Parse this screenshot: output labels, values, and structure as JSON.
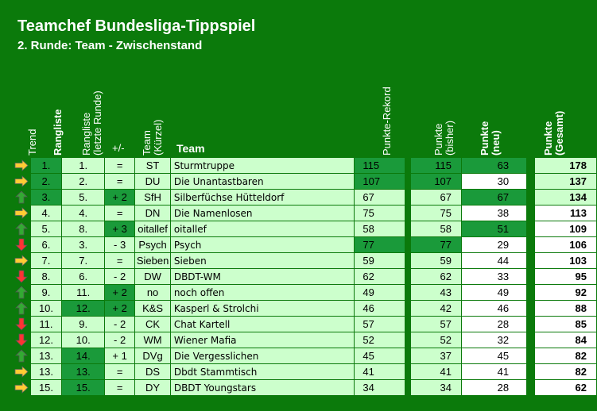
{
  "title": "Teamchef Bundesliga-Tippspiel",
  "subtitle": "2. Runde: Team - Zwischenstand",
  "headers": {
    "trend": "Trend",
    "rangliste": "Rangliste",
    "rangliste_last_1": "Rangliste",
    "rangliste_last_2": "(letzte Runde)",
    "plusminus": "+/-",
    "kuerzel_1": "Team",
    "kuerzel_2": "(Kürzel)",
    "team": "Team",
    "rekord": "Punkte-Rekord",
    "bisher_1": "Punkte",
    "bisher_2": "(bisher)",
    "neu_1": "Punkte",
    "neu_2": "(neu)",
    "gesamt_1": "Punkte",
    "gesamt_2": "(Gesamt)"
  },
  "colors": {
    "background": "#0b7a0b",
    "cell": "#ccffcc",
    "highlight": "#1a9a3a",
    "arrow_up": "#33aa33",
    "arrow_down": "#ff3333",
    "arrow_same": "#ffcc33"
  },
  "rows": [
    {
      "trend": "same",
      "rank": "1.",
      "last": "1.",
      "pm": "=",
      "abbr": "ST",
      "team": "Sturmtruppe",
      "rek": "115",
      "bis": "115",
      "neu": "63",
      "ges": "178",
      "hl": [
        "rank",
        "rek",
        "bis",
        "neu"
      ]
    },
    {
      "trend": "same",
      "rank": "2.",
      "last": "2.",
      "pm": "=",
      "abbr": "DU",
      "team": "Die Unantastbaren",
      "rek": "107",
      "bis": "107",
      "neu": "30",
      "ges": "137",
      "hl": [
        "rank",
        "rek",
        "bis"
      ]
    },
    {
      "trend": "up",
      "rank": "3.",
      "last": "5.",
      "pm": "+ 2",
      "abbr": "SfH",
      "team": "Silberfüchse Hütteldorf",
      "rek": "67",
      "bis": "67",
      "neu": "67",
      "ges": "134",
      "hl": [
        "rank",
        "pm",
        "neu"
      ]
    },
    {
      "trend": "same",
      "rank": "4.",
      "last": "4.",
      "pm": "=",
      "abbr": "DN",
      "team": "Die Namenlosen",
      "rek": "75",
      "bis": "75",
      "neu": "38",
      "ges": "113",
      "hl": []
    },
    {
      "trend": "up",
      "rank": "5.",
      "last": "8.",
      "pm": "+ 3",
      "abbr": "oitallef",
      "team": "oitallef",
      "rek": "58",
      "bis": "58",
      "neu": "51",
      "ges": "109",
      "hl": [
        "pm",
        "neu"
      ]
    },
    {
      "trend": "down",
      "rank": "6.",
      "last": "3.",
      "pm": "- 3",
      "abbr": "Psych",
      "team": "Psych",
      "rek": "77",
      "bis": "77",
      "neu": "29",
      "ges": "106",
      "hl": [
        "rek",
        "bis"
      ]
    },
    {
      "trend": "same",
      "rank": "7.",
      "last": "7.",
      "pm": "=",
      "abbr": "Sieben",
      "team": "Sieben",
      "rek": "59",
      "bis": "59",
      "neu": "44",
      "ges": "103",
      "hl": []
    },
    {
      "trend": "down",
      "rank": "8.",
      "last": "6.",
      "pm": "- 2",
      "abbr": "DW",
      "team": "DBDT-WM",
      "rek": "62",
      "bis": "62",
      "neu": "33",
      "ges": "95",
      "hl": []
    },
    {
      "trend": "up",
      "rank": "9.",
      "last": "11.",
      "pm": "+ 2",
      "abbr": "no",
      "team": "noch offen",
      "rek": "49",
      "bis": "43",
      "neu": "49",
      "ges": "92",
      "hl": [
        "pm"
      ]
    },
    {
      "trend": "up",
      "rank": "10.",
      "last": "12.",
      "pm": "+ 2",
      "abbr": "K&S",
      "team": "Kasperl & Strolchi",
      "rek": "46",
      "bis": "42",
      "neu": "46",
      "ges": "88",
      "hl": [
        "last",
        "pm"
      ]
    },
    {
      "trend": "down",
      "rank": "11.",
      "last": "9.",
      "pm": "- 2",
      "abbr": "CK",
      "team": "Chat Kartell",
      "rek": "57",
      "bis": "57",
      "neu": "28",
      "ges": "85",
      "hl": []
    },
    {
      "trend": "down",
      "rank": "12.",
      "last": "10.",
      "pm": "- 2",
      "abbr": "WM",
      "team": "Wiener Mafia",
      "rek": "52",
      "bis": "52",
      "neu": "32",
      "ges": "84",
      "hl": []
    },
    {
      "trend": "up",
      "rank": "13.",
      "last": "14.",
      "pm": "+ 1",
      "abbr": "DVg",
      "team": "Die Vergesslichen",
      "rek": "45",
      "bis": "37",
      "neu": "45",
      "ges": "82",
      "hl": [
        "last"
      ]
    },
    {
      "trend": "same",
      "rank": "13.",
      "last": "13.",
      "pm": "=",
      "abbr": "DS",
      "team": "Dbdt Stammtisch",
      "rek": "41",
      "bis": "41",
      "neu": "41",
      "ges": "82",
      "hl": [
        "last"
      ]
    },
    {
      "trend": "same",
      "rank": "15.",
      "last": "15.",
      "pm": "=",
      "abbr": "DY",
      "team": "DBDT Youngstars",
      "rek": "34",
      "bis": "34",
      "neu": "28",
      "ges": "62",
      "hl": [
        "last"
      ]
    }
  ]
}
